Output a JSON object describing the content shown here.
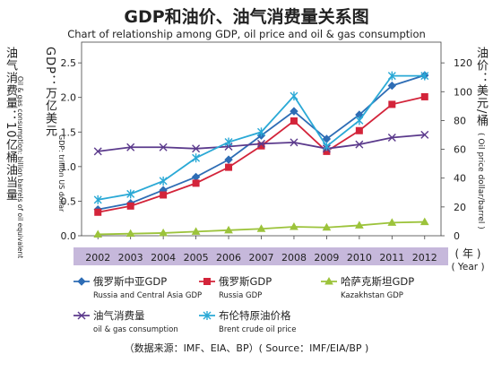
{
  "title_cn": "GDP和油价、油气消费量关系图",
  "title_en": "Chart of relationship among GDP, oil price and oil & gas consumption",
  "left_axis": {
    "label_cn_1": "油气消费量：10亿桶油当量",
    "label_cn_2": "GDP：万亿美元",
    "label_en_1": "Oil & gas consumption: billion barrels of oil equivalent",
    "label_en_2": "GDP: trillion US dollar",
    "ticks": [
      "0.0",
      "0.5",
      "1.0",
      "1.5",
      "2.0",
      "2.5"
    ]
  },
  "right_axis": {
    "label_cn": "油价：美元/桶",
    "label_en": "( Oil price dollar/barrel )",
    "ticks": [
      "0",
      "20",
      "40",
      "60",
      "80",
      "100",
      "120"
    ]
  },
  "x_axis": {
    "label_cn": "( 年 )",
    "label_en": "( Year )"
  },
  "source": "（数据来源：IMF、EIA、BP）( Source：IMF/EIA/BP )",
  "legend": [
    {
      "cn": "俄罗斯中亚GDP",
      "en": "Russia and Central Asia GDP",
      "color": "#2e6db5",
      "marker": "diamond"
    },
    {
      "cn": "俄罗斯GDP",
      "en": "Russia GDP",
      "color": "#d3243a",
      "marker": "square"
    },
    {
      "cn": "哈萨克斯坦GDP",
      "en": "Kazakhstan GDP",
      "color": "#9cc33b",
      "marker": "triangle"
    },
    {
      "cn": "油气消费量",
      "en": "oil & gas consumption",
      "color": "#5b3a8c",
      "marker": "x"
    },
    {
      "cn": "布伦特原油价格",
      "en": "Brent crude oil price",
      "color": "#2aa9d6",
      "marker": "star"
    }
  ],
  "chart_data": {
    "type": "line",
    "x": [
      "2002",
      "2003",
      "2004",
      "2005",
      "2006",
      "2007",
      "2008",
      "2009",
      "2010",
      "2011",
      "2012"
    ],
    "left_ylim": [
      0,
      2.8
    ],
    "right_ylim": [
      0,
      134.4
    ],
    "grid": false,
    "legend_position": "bottom",
    "series": [
      {
        "name": "俄罗斯中亚GDP",
        "axis": "left",
        "color": "#2e6db5",
        "marker": "diamond",
        "values": [
          0.38,
          0.47,
          0.66,
          0.85,
          1.1,
          1.45,
          1.8,
          1.4,
          1.75,
          2.17,
          2.32
        ]
      },
      {
        "name": "俄罗斯GDP",
        "axis": "left",
        "color": "#d3243a",
        "marker": "square",
        "values": [
          0.34,
          0.43,
          0.59,
          0.76,
          0.99,
          1.3,
          1.66,
          1.22,
          1.52,
          1.9,
          2.01
        ]
      },
      {
        "name": "哈萨克斯坦GDP",
        "axis": "left",
        "color": "#9cc33b",
        "marker": "triangle",
        "values": [
          0.02,
          0.03,
          0.04,
          0.06,
          0.08,
          0.1,
          0.13,
          0.12,
          0.15,
          0.19,
          0.2
        ]
      },
      {
        "name": "油气消费量",
        "axis": "left",
        "color": "#5b3a8c",
        "marker": "x",
        "values": [
          1.22,
          1.28,
          1.28,
          1.26,
          1.29,
          1.33,
          1.35,
          1.26,
          1.32,
          1.42,
          1.46
        ]
      },
      {
        "name": "布伦特原油价格",
        "axis": "right",
        "color": "#2aa9d6",
        "marker": "star",
        "values": [
          25,
          29,
          38,
          54,
          65,
          72,
          97,
          62,
          80,
          111,
          111
        ]
      }
    ]
  }
}
